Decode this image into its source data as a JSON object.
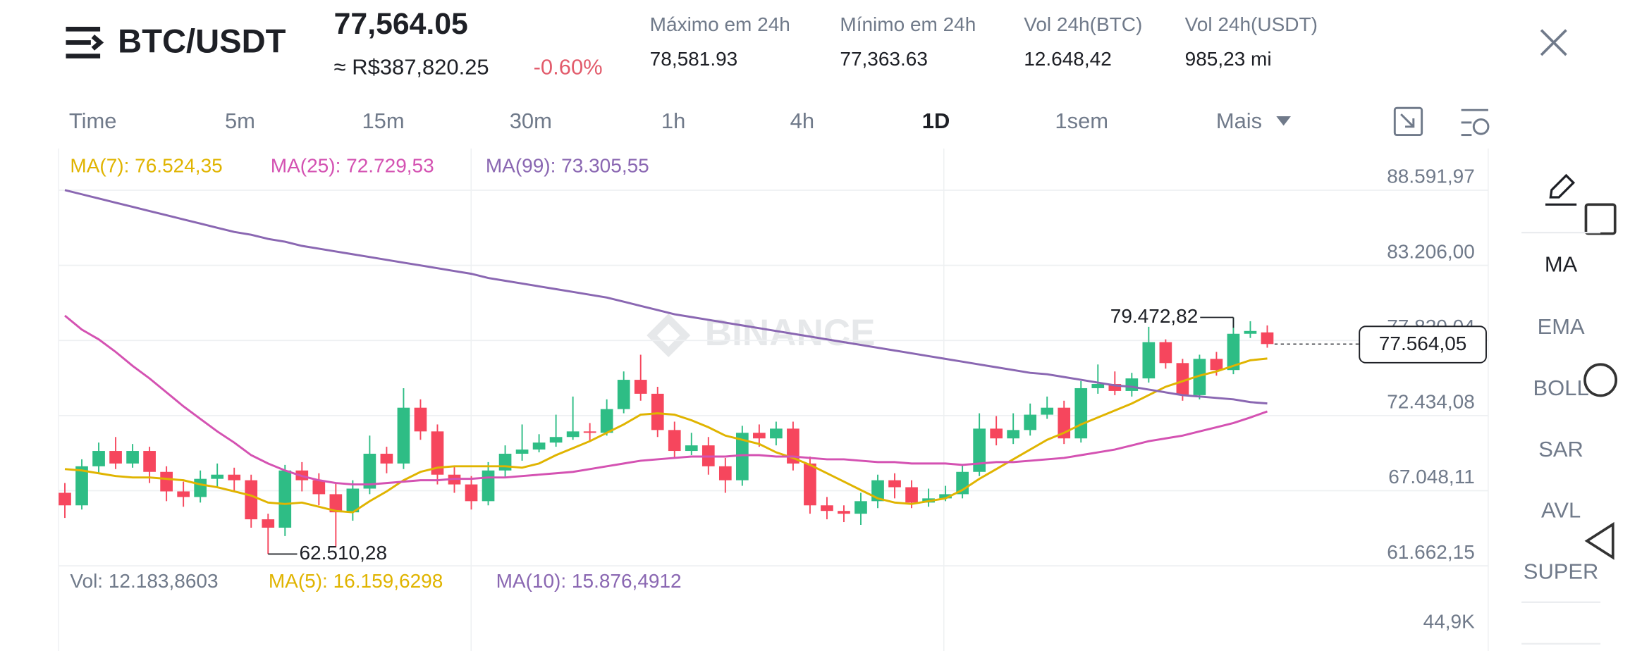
{
  "header": {
    "pair": "BTC/USDT",
    "price": "77,564.05",
    "price_local": "≈ R$387,820.25",
    "change": "-0.60%",
    "stats": [
      {
        "label": "Máximo em 24h",
        "value": "78,581.93"
      },
      {
        "label": "Mínimo em 24h",
        "value": "77,363.63"
      },
      {
        "label": "Vol 24h(BTC)",
        "value": "12.648,42"
      },
      {
        "label": "Vol 24h(USDT)",
        "value": "985,23 mi"
      }
    ]
  },
  "timeframes": [
    "Time",
    "5m",
    "15m",
    "30m",
    "1h",
    "4h",
    "1D",
    "1sem",
    "Mais"
  ],
  "active_timeframe": 6,
  "indicators": [
    "MA",
    "EMA",
    "BOLL",
    "SAR",
    "AVL",
    "SUPER"
  ],
  "active_indicator": 0,
  "chart_data": {
    "type": "candlestick",
    "watermark": "BINANCE",
    "up_color": "#2ebd85",
    "down_color": "#f6465d",
    "grid": true,
    "ylim": [
      61662.15,
      91583.95
    ],
    "yticks": [
      {
        "value": 61662.15,
        "label": "61.662,15"
      },
      {
        "value": 67048.11,
        "label": "67.048,11"
      },
      {
        "value": 72434.08,
        "label": "72.434,08"
      },
      {
        "value": 77820.04,
        "label": "77.820,04"
      },
      {
        "value": 83206.0,
        "label": "83.206,00"
      },
      {
        "value": 88591.97,
        "label": "88.591,97"
      }
    ],
    "max_label": "79.472,82",
    "min_label": "62.510,28",
    "last_label": "77.564,05",
    "open": [
      66900,
      66000,
      68800,
      69900,
      69000,
      69900,
      68400,
      67000,
      66600,
      67900,
      68200,
      67800,
      65000,
      64400,
      68500,
      67800,
      66800,
      65500,
      67200,
      69700,
      69000,
      73000,
      71300,
      68200,
      67500,
      66300,
      68500,
      69700,
      70000,
      70500,
      70900,
      71300,
      71200,
      72900,
      75000,
      74000,
      71400,
      69900,
      70300,
      68800,
      67800,
      71200,
      70800,
      71500,
      69000,
      66000,
      65600,
      65400,
      66300,
      67800,
      67300,
      66200,
      66500,
      66800,
      68400,
      71500,
      70800,
      71400,
      72500,
      73000,
      70800,
      74400,
      74700,
      74200,
      75100,
      77700,
      76200,
      73900,
      76500,
      75700,
      78300,
      78400
    ],
    "high": [
      67600,
      69300,
      70500,
      70900,
      70400,
      70200,
      68800,
      67700,
      68500,
      69000,
      68700,
      68200,
      65400,
      68900,
      69100,
      68300,
      67600,
      67800,
      71000,
      70200,
      74400,
      73600,
      71800,
      68800,
      68100,
      69100,
      70300,
      71800,
      71100,
      72500,
      73800,
      71900,
      73600,
      75600,
      76800,
      74500,
      72000,
      71200,
      70900,
      69400,
      71700,
      71800,
      72000,
      72000,
      69500,
      66600,
      66000,
      66900,
      68200,
      68300,
      67800,
      67200,
      67400,
      68900,
      72600,
      72400,
      72600,
      73300,
      73800,
      73500,
      74900,
      76100,
      75600,
      75500,
      78800,
      77900,
      76500,
      76800,
      77000,
      79472.82,
      79200,
      78900
    ],
    "low": [
      65100,
      65700,
      68300,
      68600,
      68700,
      67600,
      66300,
      65900,
      66200,
      67300,
      67000,
      64400,
      62510.28,
      63800,
      67000,
      66000,
      63000,
      64900,
      66800,
      68300,
      68600,
      70700,
      67500,
      66900,
      65700,
      66000,
      68000,
      69200,
      69800,
      70200,
      70700,
      70600,
      71000,
      72600,
      73500,
      70900,
      69400,
      69600,
      68200,
      66900,
      67400,
      70200,
      70300,
      68500,
      65400,
      65000,
      64800,
      64600,
      65800,
      66500,
      65800,
      65900,
      66300,
      66500,
      68100,
      70300,
      70400,
      71000,
      72200,
      70400,
      70500,
      74000,
      73900,
      73800,
      74800,
      75800,
      73500,
      73600,
      75300,
      75400,
      78000,
      77300
    ],
    "close": [
      66000,
      68800,
      69900,
      69000,
      69900,
      68400,
      67000,
      66600,
      67900,
      68200,
      67800,
      65000,
      64400,
      68500,
      67800,
      66800,
      65500,
      67200,
      69700,
      69000,
      73000,
      71300,
      68200,
      67500,
      66300,
      68500,
      69700,
      70000,
      70500,
      70900,
      71300,
      71200,
      72900,
      75000,
      74000,
      71400,
      69900,
      70300,
      68800,
      67800,
      71200,
      70800,
      71500,
      69000,
      66000,
      65600,
      65400,
      66300,
      67800,
      67300,
      66200,
      66500,
      66800,
      68400,
      71500,
      70800,
      71400,
      72500,
      73000,
      70800,
      74400,
      74700,
      74200,
      75100,
      77700,
      76200,
      73900,
      76500,
      75700,
      78300,
      78500,
      77564.05
    ],
    "series": [
      {
        "name": "MA(7): 76.524,35",
        "color": "#e0b400",
        "values": [
          68600,
          68500,
          68300,
          68100,
          68000,
          68000,
          67900,
          67800,
          67500,
          67300,
          67000,
          66700,
          66200,
          66100,
          66200,
          65900,
          65600,
          65500,
          66300,
          67000,
          67800,
          68400,
          68700,
          68800,
          68800,
          68800,
          68800,
          68700,
          69000,
          69600,
          70100,
          70600,
          71200,
          71800,
          72500,
          72600,
          72500,
          72100,
          71600,
          71000,
          70700,
          70400,
          69800,
          69400,
          68900,
          68300,
          67700,
          67100,
          66500,
          66200,
          66100,
          66300,
          66500,
          67100,
          67900,
          68600,
          69300,
          70000,
          70700,
          71200,
          71800,
          72300,
          72800,
          73300,
          73900,
          74500,
          74900,
          75300,
          75600,
          76000,
          76400,
          76524.35
        ]
      },
      {
        "name": "MA(25): 72.729,53",
        "color": "#d452b2",
        "values": [
          79600,
          78600,
          77900,
          77000,
          76000,
          75100,
          74100,
          73100,
          72200,
          71300,
          70500,
          69600,
          69000,
          68500,
          68100,
          67800,
          67600,
          67500,
          67500,
          67600,
          67700,
          67800,
          67800,
          67900,
          67900,
          68000,
          68000,
          68100,
          68200,
          68300,
          68400,
          68600,
          68800,
          69000,
          69200,
          69300,
          69400,
          69500,
          69500,
          69500,
          69600,
          69600,
          69500,
          69500,
          69400,
          69300,
          69300,
          69200,
          69100,
          69100,
          69000,
          69000,
          69000,
          68900,
          69000,
          69100,
          69100,
          69200,
          69300,
          69400,
          69600,
          69800,
          70000,
          70300,
          70600,
          70800,
          71000,
          71300,
          71600,
          71900,
          72300,
          72729.53
        ]
      },
      {
        "name": "MA(99): 73.305,55",
        "color": "#8a67b2",
        "values": [
          88600,
          88300,
          88000,
          87700,
          87400,
          87100,
          86800,
          86500,
          86200,
          85900,
          85600,
          85400,
          85100,
          84900,
          84600,
          84400,
          84200,
          84000,
          83800,
          83600,
          83400,
          83200,
          83000,
          82800,
          82600,
          82300,
          82100,
          81900,
          81700,
          81500,
          81300,
          81100,
          80900,
          80600,
          80300,
          80000,
          79700,
          79500,
          79300,
          79100,
          78900,
          78700,
          78500,
          78300,
          78100,
          77900,
          77700,
          77500,
          77300,
          77100,
          76900,
          76700,
          76500,
          76300,
          76100,
          75900,
          75700,
          75500,
          75400,
          75200,
          75000,
          74800,
          74600,
          74500,
          74300,
          74100,
          73900,
          73800,
          73700,
          73600,
          73400,
          73305.55
        ]
      }
    ]
  },
  "volume": {
    "legend": [
      {
        "text": "Vol: 12.183,8603",
        "color": "#707a8a"
      },
      {
        "text": "MA(5): 16.159,6298",
        "color": "#e0b400"
      },
      {
        "text": "MA(10): 15.876,4912",
        "color": "#8a67b2"
      }
    ],
    "axis_label": "44,9K"
  }
}
